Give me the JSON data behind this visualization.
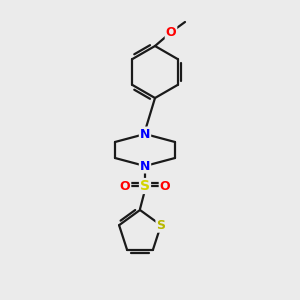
{
  "background_color": "#ebebeb",
  "line_color": "#1a1a1a",
  "bond_width": 1.6,
  "atom_colors": {
    "N": "#0000ff",
    "O": "#ff0000",
    "S_sulfonyl": "#d4d400",
    "S_thiophene": "#b8b800",
    "C": "#1a1a1a"
  },
  "font_size": 9.0
}
